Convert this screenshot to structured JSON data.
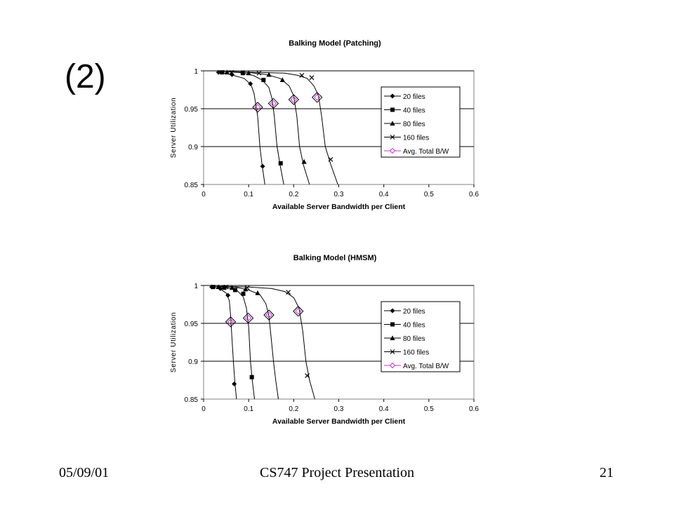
{
  "slide": {
    "label": "(2)",
    "footer_date": "05/09/01",
    "footer_title": "CS747 Project Presentation",
    "page_number": "21"
  },
  "chart_data": [
    {
      "type": "line",
      "title": "Balking Model (Patching)",
      "xlabel": "Available Server Bandwidth per Client",
      "ylabel": "Server Utilization",
      "xlim": [
        0,
        0.6
      ],
      "ylim": [
        0.85,
        1
      ],
      "xticks": [
        "0",
        "0.1",
        "0.2",
        "0.3",
        "0.4",
        "0.5",
        "0.6"
      ],
      "yticks": [
        "0.85",
        "0.9",
        "0.95",
        "1"
      ],
      "grid": "horizontal",
      "legend_position": "right",
      "series": [
        {
          "name": "20 files",
          "marker": "diamond",
          "curve": [
            [
              0.03,
              0.999
            ],
            [
              0.06,
              0.995
            ],
            [
              0.09,
              0.99
            ],
            [
              0.105,
              0.982
            ],
            [
              0.112,
              0.97
            ],
            [
              0.116,
              0.955
            ],
            [
              0.12,
              0.94
            ],
            [
              0.125,
              0.9
            ],
            [
              0.13,
              0.875
            ],
            [
              0.136,
              0.85
            ]
          ],
          "points": [
            [
              0.033,
              0.998
            ],
            [
              0.063,
              0.995
            ],
            [
              0.104,
              0.983
            ],
            [
              0.131,
              0.874
            ]
          ]
        },
        {
          "name": "40 files",
          "marker": "square",
          "curve": [
            [
              0.04,
              0.999
            ],
            [
              0.08,
              0.998
            ],
            [
              0.11,
              0.994
            ],
            [
              0.13,
              0.988
            ],
            [
              0.145,
              0.978
            ],
            [
              0.152,
              0.963
            ],
            [
              0.157,
              0.94
            ],
            [
              0.163,
              0.9
            ],
            [
              0.17,
              0.875
            ],
            [
              0.178,
              0.85
            ]
          ],
          "points": [
            [
              0.041,
              0.998
            ],
            [
              0.087,
              0.997
            ],
            [
              0.133,
              0.988
            ],
            [
              0.171,
              0.878
            ]
          ]
        },
        {
          "name": "80 files",
          "marker": "triangle",
          "curve": [
            [
              0.05,
              0.999
            ],
            [
              0.1,
              0.998
            ],
            [
              0.14,
              0.995
            ],
            [
              0.17,
              0.99
            ],
            [
              0.19,
              0.98
            ],
            [
              0.2,
              0.967
            ],
            [
              0.207,
              0.94
            ],
            [
              0.213,
              0.9
            ],
            [
              0.222,
              0.875
            ],
            [
              0.235,
              0.85
            ]
          ],
          "points": [
            [
              0.052,
              0.998
            ],
            [
              0.1,
              0.997
            ],
            [
              0.145,
              0.995
            ],
            [
              0.175,
              0.988
            ],
            [
              0.223,
              0.88
            ]
          ]
        },
        {
          "name": "160 files",
          "marker": "x",
          "curve": [
            [
              0.06,
              0.999
            ],
            [
              0.12,
              0.998
            ],
            [
              0.18,
              0.997
            ],
            [
              0.21,
              0.994
            ],
            [
              0.23,
              0.99
            ],
            [
              0.245,
              0.98
            ],
            [
              0.255,
              0.967
            ],
            [
              0.262,
              0.94
            ],
            [
              0.27,
              0.9
            ],
            [
              0.283,
              0.875
            ],
            [
              0.298,
              0.85
            ]
          ],
          "points": [
            [
              0.062,
              0.998
            ],
            [
              0.123,
              0.997
            ],
            [
              0.218,
              0.994
            ],
            [
              0.24,
              0.991
            ],
            [
              0.282,
              0.883
            ]
          ]
        },
        {
          "name": "Avg. Total B/W",
          "marker": "open-diamond-large",
          "points": [
            [
              0.12,
              0.952
            ],
            [
              0.155,
              0.957
            ],
            [
              0.2,
              0.962
            ],
            [
              0.252,
              0.965
            ]
          ]
        }
      ]
    },
    {
      "type": "line",
      "title": "Balking Model (HMSM)",
      "xlabel": "Available Server Bandwidth per Client",
      "ylabel": "Server Utilization",
      "xlim": [
        0,
        0.6
      ],
      "ylim": [
        0.85,
        1
      ],
      "xticks": [
        "0",
        "0.1",
        "0.2",
        "0.3",
        "0.4",
        "0.5",
        "0.6"
      ],
      "yticks": [
        "0.85",
        "0.9",
        "0.95",
        "1"
      ],
      "grid": "horizontal",
      "legend_position": "right",
      "series": [
        {
          "name": "20 files",
          "marker": "diamond",
          "curve": [
            [
              0.015,
              0.999
            ],
            [
              0.035,
              0.996
            ],
            [
              0.05,
              0.99
            ],
            [
              0.057,
              0.98
            ],
            [
              0.06,
              0.96
            ],
            [
              0.063,
              0.93
            ],
            [
              0.066,
              0.9
            ],
            [
              0.069,
              0.875
            ],
            [
              0.073,
              0.85
            ]
          ],
          "points": [
            [
              0.018,
              0.998
            ],
            [
              0.037,
              0.996
            ],
            [
              0.054,
              0.987
            ],
            [
              0.068,
              0.87
            ]
          ]
        },
        {
          "name": "40 files",
          "marker": "square",
          "curve": [
            [
              0.02,
              0.999
            ],
            [
              0.05,
              0.998
            ],
            [
              0.075,
              0.993
            ],
            [
              0.088,
              0.985
            ],
            [
              0.095,
              0.97
            ],
            [
              0.1,
              0.945
            ],
            [
              0.104,
              0.9
            ],
            [
              0.108,
              0.875
            ],
            [
              0.113,
              0.85
            ]
          ],
          "points": [
            [
              0.021,
              0.998
            ],
            [
              0.046,
              0.997
            ],
            [
              0.07,
              0.994
            ],
            [
              0.088,
              0.989
            ],
            [
              0.107,
              0.879
            ]
          ]
        },
        {
          "name": "80 files",
          "marker": "triangle",
          "curve": [
            [
              0.03,
              0.999
            ],
            [
              0.07,
              0.998
            ],
            [
              0.1,
              0.994
            ],
            [
              0.125,
              0.988
            ],
            [
              0.138,
              0.976
            ],
            [
              0.145,
              0.96
            ],
            [
              0.15,
              0.93
            ],
            [
              0.155,
              0.9
            ],
            [
              0.16,
              0.875
            ],
            [
              0.166,
              0.85
            ]
          ],
          "points": [
            [
              0.033,
              0.998
            ],
            [
              0.063,
              0.997
            ],
            [
              0.093,
              0.995
            ],
            [
              0.12,
              0.99
            ]
          ]
        },
        {
          "name": "160 files",
          "marker": "x",
          "curve": [
            [
              0.04,
              0.999
            ],
            [
              0.1,
              0.998
            ],
            [
              0.15,
              0.996
            ],
            [
              0.18,
              0.992
            ],
            [
              0.2,
              0.984
            ],
            [
              0.212,
              0.97
            ],
            [
              0.22,
              0.94
            ],
            [
              0.227,
              0.9
            ],
            [
              0.235,
              0.875
            ],
            [
              0.247,
              0.85
            ]
          ],
          "points": [
            [
              0.05,
              0.998
            ],
            [
              0.097,
              0.997
            ],
            [
              0.188,
              0.991
            ],
            [
              0.23,
              0.881
            ]
          ]
        },
        {
          "name": "Avg. Total B/W",
          "marker": "open-diamond-large",
          "points": [
            [
              0.06,
              0.952
            ],
            [
              0.099,
              0.957
            ],
            [
              0.145,
              0.961
            ],
            [
              0.21,
              0.966
            ]
          ]
        }
      ]
    }
  ]
}
